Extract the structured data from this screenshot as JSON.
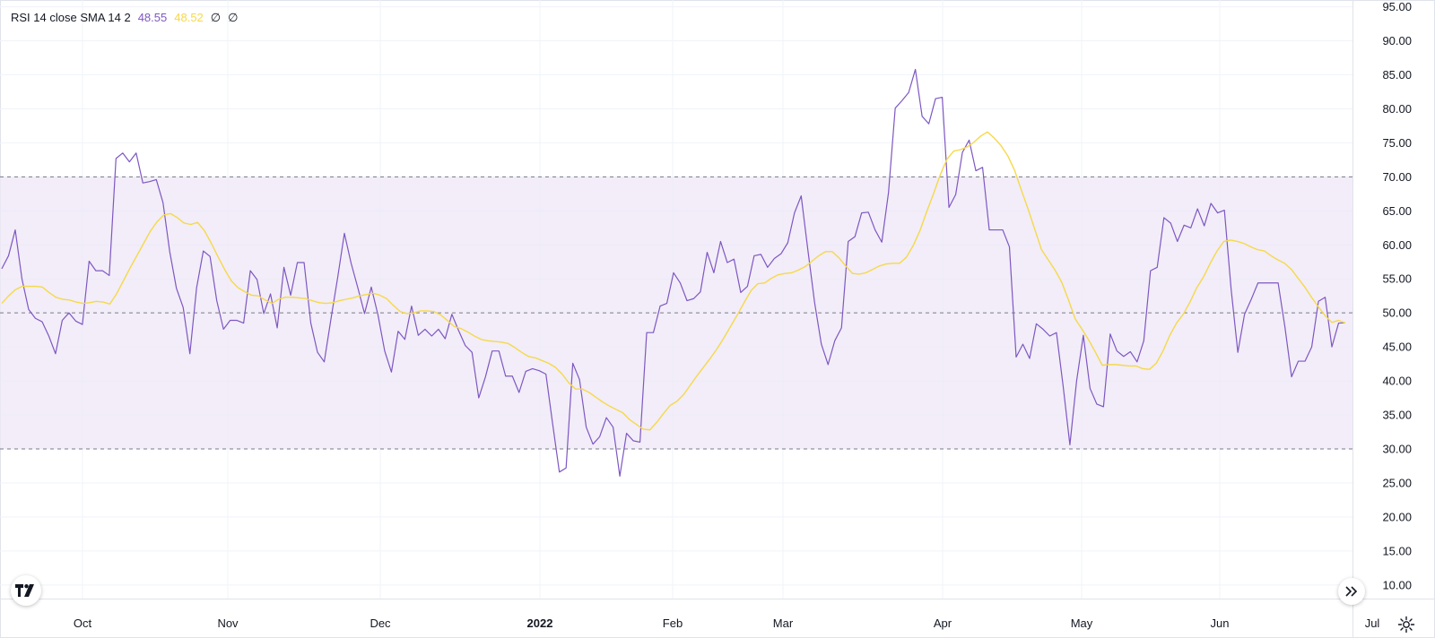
{
  "legend": {
    "name": "RSI",
    "params": "14 close SMA 14 2",
    "rsi_value": "48.55",
    "sma_value": "48.52",
    "extra1": "∅",
    "extra2": "∅"
  },
  "colors": {
    "rsi_line": "#7e57c2",
    "sma_line": "#f5d94a",
    "band_fill": "#ede7f6",
    "grid": "#f0f3fa",
    "band_lines": "#787b86",
    "axis_text": "#131722"
  },
  "icons": {
    "logo": "tradingview-logo-icon",
    "scroll": "double-chevron-right-icon",
    "settings": "gear-icon"
  },
  "chart_data": {
    "type": "line",
    "title": "RSI 14 close SMA 14 2",
    "ylim": [
      8,
      96
    ],
    "y_ticks": [
      "95.00",
      "90.00",
      "85.00",
      "80.00",
      "75.00",
      "70.00",
      "65.00",
      "60.00",
      "55.00",
      "50.00",
      "45.00",
      "40.00",
      "35.00",
      "30.00",
      "25.00",
      "20.00",
      "15.00",
      "10.00"
    ],
    "x_ticks": [
      {
        "label": "Oct",
        "bold": false
      },
      {
        "label": "Nov",
        "bold": false
      },
      {
        "label": "Dec",
        "bold": false
      },
      {
        "label": "2022",
        "bold": true
      },
      {
        "label": "Feb",
        "bold": false
      },
      {
        "label": "Mar",
        "bold": false
      },
      {
        "label": "Apr",
        "bold": false
      },
      {
        "label": "May",
        "bold": false
      },
      {
        "label": "Jun",
        "bold": false
      },
      {
        "label": "Jul",
        "bold": false
      }
    ],
    "bands": {
      "upper": 70,
      "middle": 50,
      "lower": 30
    },
    "series": [
      {
        "name": "RSI",
        "values": [
          56.5,
          58.4,
          62.2,
          55.0,
          50.5,
          49.2,
          48.7,
          46.6,
          44.0,
          48.9,
          50.0,
          48.8,
          48.3,
          57.6,
          56.2,
          56.2,
          55.5,
          72.7,
          73.5,
          72.2,
          73.5,
          69.1,
          69.3,
          69.6,
          66.2,
          59.0,
          53.6,
          50.8,
          44.0,
          53.7,
          59.1,
          58.3,
          51.8,
          47.6,
          48.9,
          48.9,
          48.5,
          56.2,
          54.9,
          49.9,
          52.8,
          47.8,
          56.7,
          52.6,
          57.4,
          57.4,
          48.5,
          44.2,
          42.8,
          49.1,
          55.2,
          61.7,
          57.3,
          53.7,
          49.9,
          53.8,
          49.7,
          44.4,
          41.3,
          47.3,
          46.1,
          51.0,
          46.7,
          47.6,
          46.6,
          47.6,
          46.2,
          49.8,
          47.4,
          45.2,
          44.2,
          37.5,
          40.6,
          44.4,
          44.4,
          40.7,
          40.7,
          38.3,
          41.4,
          41.8,
          41.5,
          41.0,
          33.7,
          26.6,
          27.2,
          42.6,
          40.2,
          33.2,
          30.7,
          31.8,
          34.6,
          33.2,
          26.0,
          32.3,
          31.2,
          31.0,
          47.1,
          47.1,
          51.0,
          51.4,
          55.9,
          54.4,
          51.8,
          52.1,
          53.1,
          58.9,
          55.9,
          60.5,
          57.4,
          57.9,
          53.0,
          53.9,
          58.4,
          58.6,
          56.7,
          58.0,
          58.7,
          60.3,
          64.7,
          67.2,
          59.2,
          51.5,
          45.4,
          42.4,
          45.9,
          47.8,
          60.5,
          61.2,
          64.7,
          64.8,
          62.2,
          60.4,
          67.7,
          80.1,
          81.2,
          82.4,
          85.8,
          78.9,
          77.8,
          81.5,
          81.7,
          65.5,
          67.4,
          73.6,
          75.4,
          70.9,
          71.4,
          62.2,
          62.2,
          62.2,
          59.7,
          43.5,
          45.4,
          43.3,
          48.4,
          47.6,
          46.6,
          47.1,
          39.2,
          30.6,
          40.0,
          46.7,
          38.9,
          36.6,
          36.2,
          46.9,
          44.4,
          43.6,
          44.3,
          42.8,
          45.9,
          56.2,
          56.7,
          64.0,
          63.2,
          60.5,
          62.9,
          62.5,
          65.3,
          62.8,
          66.1,
          64.7,
          65.1,
          53.5,
          44.2,
          49.8,
          52.0,
          54.4,
          54.4,
          54.4,
          54.4,
          48.0,
          40.6,
          42.9,
          42.9,
          45.0,
          51.7,
          52.3,
          45.0,
          48.5,
          48.55
        ]
      },
      {
        "name": "SMA",
        "values": [
          51.4,
          52.5,
          53.4,
          53.9,
          53.9,
          53.9,
          53.8,
          53.0,
          52.3,
          52.0,
          51.9,
          51.6,
          51.4,
          51.5,
          51.7,
          51.6,
          51.3,
          52.8,
          54.7,
          56.6,
          58.4,
          60.2,
          62.0,
          63.4,
          64.4,
          64.6,
          64.0,
          63.2,
          63.0,
          63.3,
          62.1,
          60.3,
          58.3,
          56.4,
          54.7,
          53.7,
          53.1,
          52.6,
          52.5,
          51.9,
          51.4,
          52.0,
          52.3,
          52.3,
          52.2,
          52.1,
          51.8,
          51.5,
          51.4,
          51.5,
          51.8,
          52.0,
          52.2,
          52.5,
          52.7,
          52.9,
          52.6,
          52.1,
          51.1,
          50.2,
          49.9,
          50.0,
          50.3,
          50.3,
          50.2,
          49.7,
          48.9,
          48.0,
          47.7,
          47.2,
          46.6,
          46.1,
          45.9,
          45.8,
          45.7,
          45.5,
          44.9,
          44.2,
          43.6,
          43.4,
          43.0,
          42.6,
          42.0,
          41.0,
          39.7,
          38.8,
          38.8,
          38.3,
          37.6,
          36.9,
          36.3,
          35.8,
          35.3,
          34.3,
          33.6,
          32.9,
          32.8,
          33.9,
          35.2,
          36.4,
          37.0,
          38.0,
          39.4,
          40.8,
          42.1,
          43.4,
          44.8,
          46.4,
          48.1,
          49.8,
          51.6,
          53.3,
          54.3,
          54.4,
          55.1,
          55.6,
          55.8,
          55.9,
          56.3,
          56.8,
          57.6,
          58.4,
          59.0,
          59.0,
          58.1,
          56.9,
          55.8,
          55.7,
          55.9,
          56.4,
          56.9,
          57.2,
          57.3,
          57.3,
          58.2,
          59.9,
          62.1,
          64.9,
          67.5,
          70.3,
          72.6,
          73.8,
          74.0,
          74.4,
          75.1,
          76.0,
          76.6,
          75.7,
          74.6,
          73.1,
          71.0,
          68.1,
          65.3,
          62.3,
          59.3,
          57.8,
          56.3,
          54.5,
          51.9,
          49.1,
          47.6,
          46.0,
          44.2,
          42.3,
          42.4,
          42.4,
          42.3,
          42.2,
          42.2,
          41.8,
          41.7,
          42.6,
          44.4,
          46.7,
          48.5,
          49.8,
          51.6,
          53.7,
          55.3,
          57.3,
          59.1,
          60.5,
          60.7,
          60.5,
          60.2,
          59.7,
          59.3,
          59.1,
          58.4,
          57.8,
          57.3,
          56.4,
          55.1,
          53.8,
          52.3,
          50.9,
          49.6,
          48.6,
          48.9,
          48.52
        ]
      }
    ]
  }
}
